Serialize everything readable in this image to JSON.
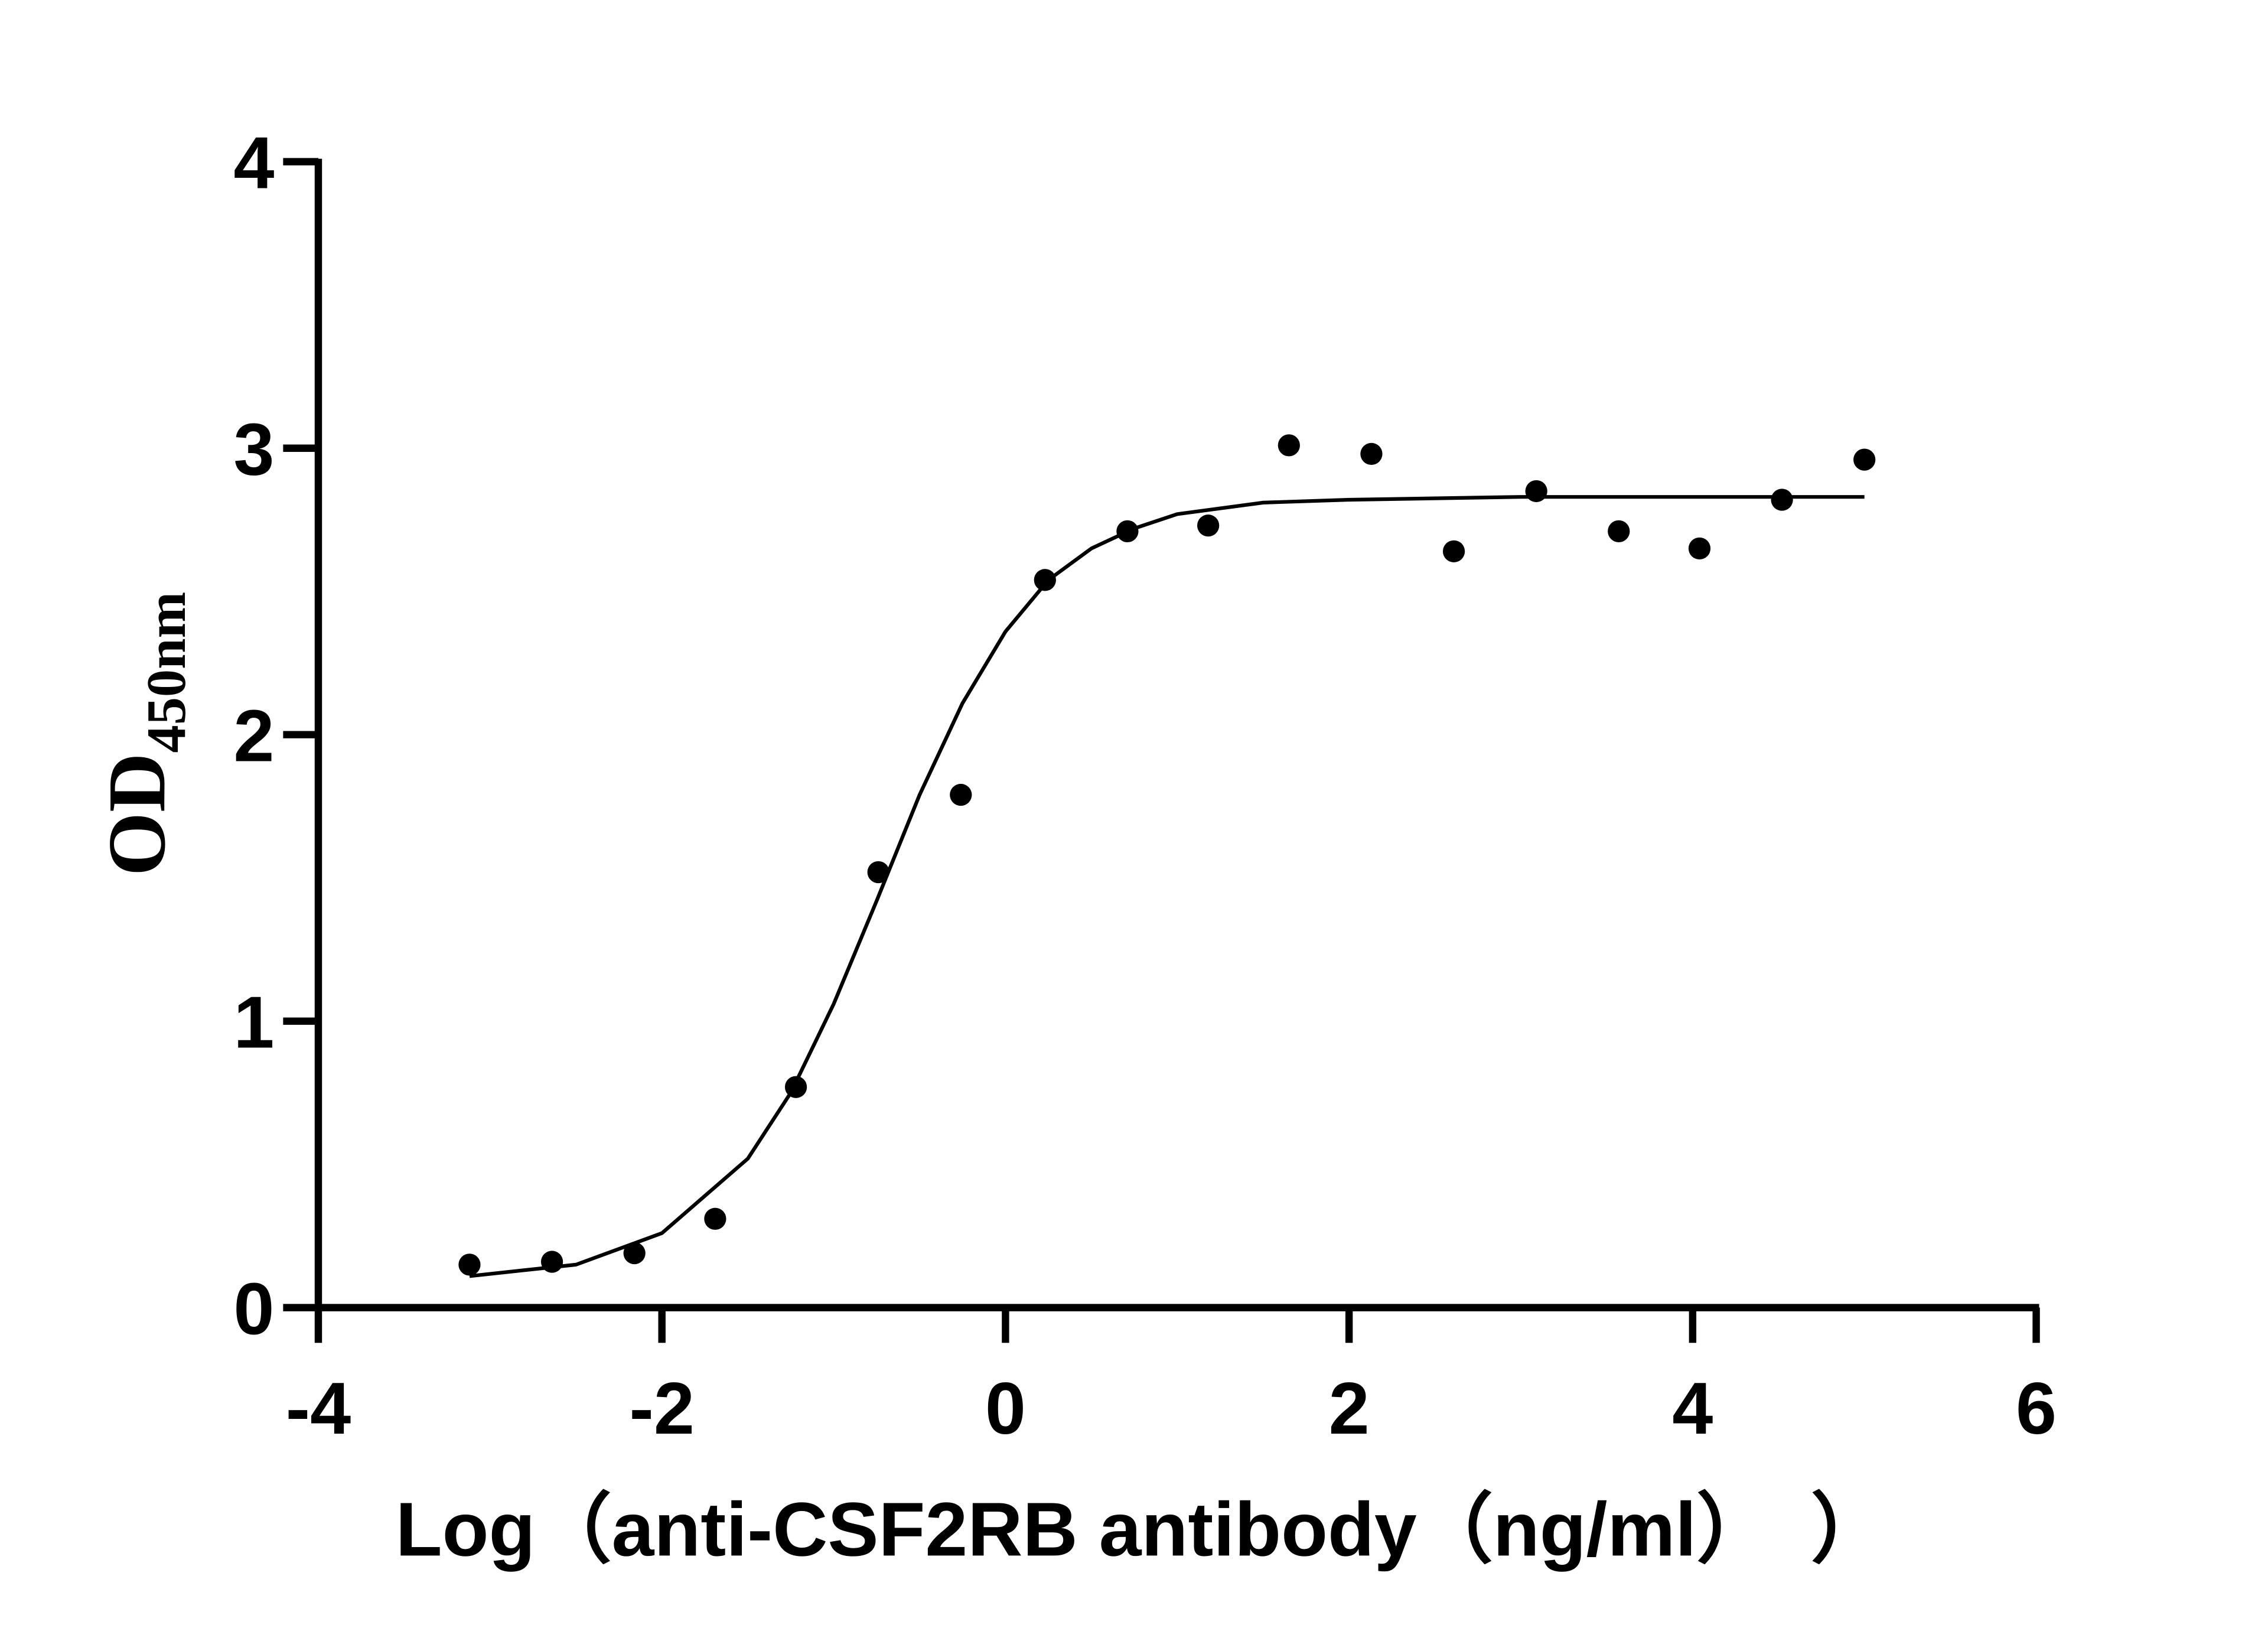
{
  "chart_data": {
    "type": "scatter",
    "x_label": "Log（anti-CSF2RB antibody（ng/ml）　）",
    "y_label": "OD",
    "y_label_subscript": "450nm",
    "xlim": [
      -4,
      6
    ],
    "xticks": [
      -4,
      -2,
      0,
      2,
      4,
      6
    ],
    "ylim": [
      0,
      4
    ],
    "yticks": [
      0,
      1,
      2,
      3,
      4
    ],
    "series": [
      {
        "mode": "markers",
        "color": "#000000",
        "x": [
          -3.12,
          -2.64,
          -2.16,
          -1.69,
          -1.22,
          -0.74,
          -0.26,
          0.23,
          0.71,
          1.18,
          1.65,
          2.13,
          2.61,
          3.09,
          3.57,
          4.04,
          4.52,
          5.0
        ],
        "values": [
          0.15,
          0.16,
          0.19,
          0.31,
          0.77,
          1.52,
          1.79,
          2.54,
          2.71,
          2.73,
          3.01,
          2.98,
          2.64,
          2.85,
          2.71,
          2.65,
          2.82,
          2.96
        ]
      },
      {
        "mode": "line",
        "color": "#000000",
        "x": [
          -3.12,
          -2.5,
          -2,
          -1.5,
          -1.25,
          -1,
          -0.75,
          -0.5,
          -0.25,
          0,
          0.25,
          0.5,
          0.75,
          1,
          1.5,
          2,
          3,
          4,
          5
        ],
        "values": [
          0.11,
          0.15,
          0.26,
          0.52,
          0.75,
          1.06,
          1.42,
          1.79,
          2.11,
          2.36,
          2.54,
          2.65,
          2.72,
          2.77,
          2.81,
          2.82,
          2.83,
          2.83,
          2.83
        ]
      }
    ]
  }
}
